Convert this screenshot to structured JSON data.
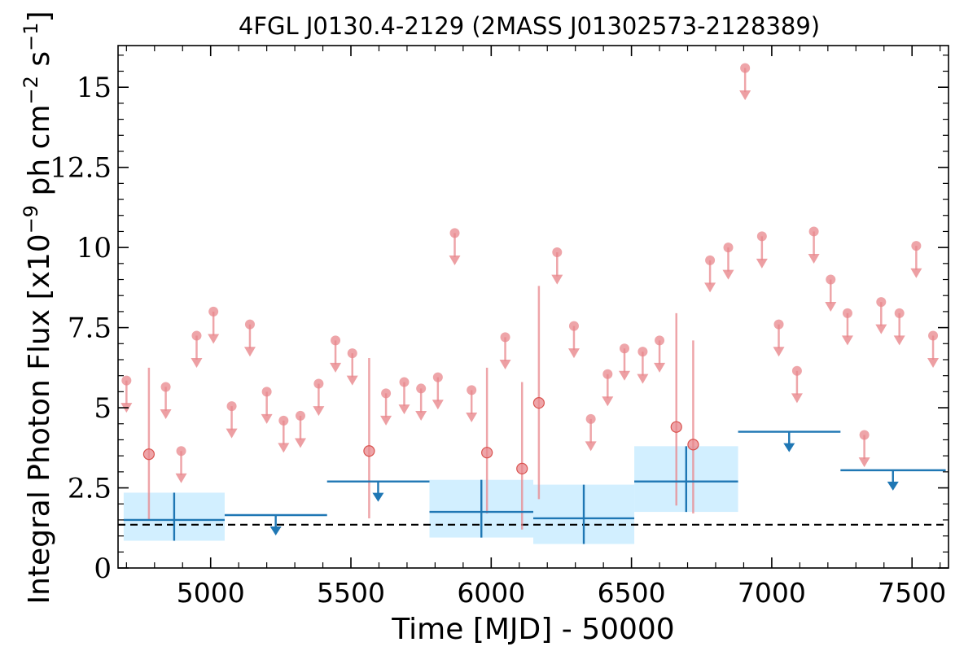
{
  "chart_data": {
    "type": "scatter",
    "title": "4FGL J0130.4-2129 (2MASS J01302573-2128389)",
    "xlabel": "Time [MJD] - 50000",
    "ylabel": "Integral Photon Flux [x10^-9 ph cm^-2 s^-1]",
    "xlim": [
      4670,
      7630
    ],
    "ylim": [
      0,
      16.3
    ],
    "x_ticks": [
      5000,
      5500,
      6000,
      6500,
      7000,
      7500
    ],
    "x_tick_labels": [
      "5000",
      "5500",
      "6000",
      "6500",
      "7000",
      "7500"
    ],
    "y_ticks": [
      0,
      2.5,
      5,
      7.5,
      10,
      12.5,
      15
    ],
    "y_tick_labels": [
      "0",
      "2.5",
      "5",
      "7.5",
      "10",
      "12.5",
      "15"
    ],
    "grid": false,
    "reference_line": {
      "y": 1.35,
      "style": "dashed",
      "color": "#000000"
    },
    "colors": {
      "short_bins": "#e8878c",
      "long_bins": "#1f77b4",
      "band_fill": "#d2efff"
    },
    "series": [
      {
        "style": "short-bins",
        "detections": [
          {
            "x": 4780,
            "y": 3.55,
            "ylo": 1.5,
            "yhi": 6.25
          },
          {
            "x": 5565,
            "y": 3.65,
            "ylo": 1.55,
            "yhi": 6.55
          },
          {
            "x": 5985,
            "y": 3.6,
            "ylo": 1.7,
            "yhi": 6.25
          },
          {
            "x": 6110,
            "y": 3.1,
            "ylo": 1.2,
            "yhi": 5.8
          },
          {
            "x": 6170,
            "y": 5.15,
            "ylo": 2.15,
            "yhi": 8.8
          },
          {
            "x": 6660,
            "y": 4.4,
            "ylo": 1.95,
            "yhi": 7.95
          },
          {
            "x": 6720,
            "y": 3.85,
            "ylo": 1.7,
            "yhi": 7.1
          }
        ],
        "upper_limits": [
          {
            "x": 4700,
            "y": 5.85
          },
          {
            "x": 4840,
            "y": 5.65
          },
          {
            "x": 4895,
            "y": 3.65
          },
          {
            "x": 4950,
            "y": 7.25
          },
          {
            "x": 5010,
            "y": 8.0
          },
          {
            "x": 5075,
            "y": 5.05
          },
          {
            "x": 5140,
            "y": 7.6
          },
          {
            "x": 5200,
            "y": 5.5
          },
          {
            "x": 5260,
            "y": 4.6
          },
          {
            "x": 5320,
            "y": 4.75
          },
          {
            "x": 5385,
            "y": 5.75
          },
          {
            "x": 5445,
            "y": 7.1
          },
          {
            "x": 5505,
            "y": 6.7
          },
          {
            "x": 5625,
            "y": 5.45
          },
          {
            "x": 5690,
            "y": 5.8
          },
          {
            "x": 5750,
            "y": 5.6
          },
          {
            "x": 5810,
            "y": 5.95
          },
          {
            "x": 5870,
            "y": 10.45
          },
          {
            "x": 5930,
            "y": 5.55
          },
          {
            "x": 6050,
            "y": 7.2
          },
          {
            "x": 6235,
            "y": 9.85
          },
          {
            "x": 6295,
            "y": 7.55
          },
          {
            "x": 6355,
            "y": 4.65
          },
          {
            "x": 6415,
            "y": 6.05
          },
          {
            "x": 6475,
            "y": 6.85
          },
          {
            "x": 6540,
            "y": 6.75
          },
          {
            "x": 6600,
            "y": 7.1
          },
          {
            "x": 6780,
            "y": 9.6
          },
          {
            "x": 6845,
            "y": 10.0
          },
          {
            "x": 6905,
            "y": 15.6
          },
          {
            "x": 6965,
            "y": 10.35
          },
          {
            "x": 7025,
            "y": 7.6
          },
          {
            "x": 7090,
            "y": 6.15
          },
          {
            "x": 7150,
            "y": 10.5
          },
          {
            "x": 7210,
            "y": 9.0
          },
          {
            "x": 7270,
            "y": 7.95
          },
          {
            "x": 7330,
            "y": 4.15
          },
          {
            "x": 7390,
            "y": 8.3
          },
          {
            "x": 7455,
            "y": 7.95
          },
          {
            "x": 7515,
            "y": 10.05
          },
          {
            "x": 7575,
            "y": 7.25
          }
        ]
      },
      {
        "style": "long-bins",
        "detections": [
          {
            "x0": 4690,
            "x1": 5050,
            "x": 4870,
            "y": 1.5,
            "ylo": 0.85,
            "yhi": 2.35
          },
          {
            "x0": 5780,
            "x1": 6150,
            "x": 5965,
            "y": 1.75,
            "ylo": 0.95,
            "yhi": 2.75
          },
          {
            "x0": 6150,
            "x1": 6510,
            "x": 6330,
            "y": 1.55,
            "ylo": 0.75,
            "yhi": 2.6
          },
          {
            "x0": 6510,
            "x1": 6880,
            "x": 6695,
            "y": 2.7,
            "ylo": 1.75,
            "yhi": 3.8
          }
        ],
        "upper_limits": [
          {
            "x0": 5050,
            "x1": 5415,
            "x": 5232,
            "y": 1.65
          },
          {
            "x0": 5415,
            "x1": 5780,
            "x": 5597,
            "y": 2.7
          },
          {
            "x0": 6880,
            "x1": 7245,
            "x": 7062,
            "y": 4.25
          },
          {
            "x0": 7245,
            "x1": 7620,
            "x": 7432,
            "y": 3.05
          }
        ]
      }
    ]
  }
}
